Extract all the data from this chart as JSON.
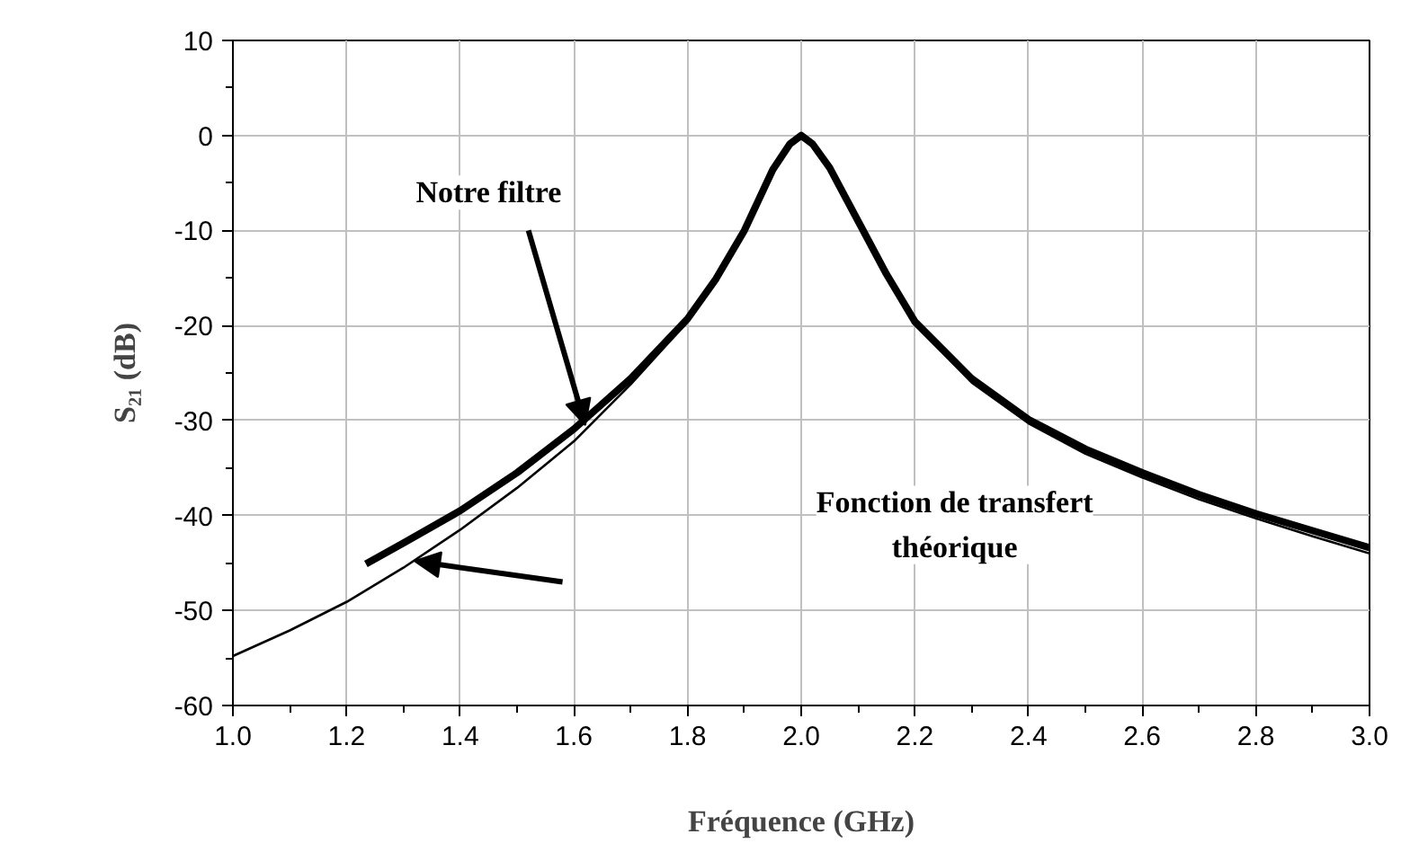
{
  "chart_data": {
    "type": "line",
    "xlabel": "Fréquence (GHz)",
    "ylabel": "S₂₁ (dB)",
    "xlim": [
      1.0,
      3.0
    ],
    "xticks": [
      {
        "value": 1.0,
        "label": "1.0"
      },
      1.2,
      1.4,
      1.6,
      1.8,
      {
        "value": 2.0,
        "label": "2.0"
      },
      2.2,
      2.4,
      2.6,
      2.8,
      {
        "value": 3.0,
        "label": "3.0"
      }
    ],
    "ylim": [
      -60,
      10
    ],
    "yticks": [
      -60,
      -50,
      -40,
      -30,
      -20,
      -10,
      0,
      10
    ],
    "grid": true,
    "marker": "none",
    "line_style": "solid",
    "series": [
      {
        "name": null,
        "color": "#000000",
        "x": [
          1.234,
          1.3,
          1.4,
          1.5,
          1.6,
          1.7,
          1.8,
          1.85,
          1.9,
          1.95,
          1.98,
          2.0,
          2.02,
          2.05,
          2.1,
          2.15,
          2.2,
          2.3,
          2.4,
          2.5,
          2.6,
          2.7,
          2.8,
          2.9,
          3.0
        ],
        "values": [
          -45.1,
          -42.9,
          -39.5,
          -35.5,
          -30.9,
          -25.6,
          -19.3,
          -15.1,
          -10,
          -3.6,
          -0.9,
          0,
          -0.9,
          -3.4,
          -9,
          -14.6,
          -19.6,
          -25.6,
          -29.9,
          -33,
          -35.5,
          -37.8,
          -39.8,
          -41.6,
          -43.4
        ]
      },
      {
        "name": null,
        "color": "#000000",
        "x": [
          1.0,
          1.1,
          1.2,
          1.3,
          1.4,
          1.5,
          1.6,
          1.7,
          1.8,
          1.85,
          1.9,
          1.95,
          1.98,
          2.0,
          2.02,
          2.05,
          2.1,
          2.15,
          2.2,
          2.3,
          2.4,
          2.5,
          2.6,
          2.7,
          2.8,
          2.9,
          3.0
        ],
        "values": [
          -54.8,
          -52.1,
          -49.1,
          -45.5,
          -41.5,
          -37.1,
          -32.2,
          -26.2,
          -19.6,
          -15.2,
          -10.3,
          -3.8,
          -1,
          0,
          -1,
          -3.6,
          -9.2,
          -14.8,
          -19.8,
          -26,
          -30.3,
          -33.5,
          -36,
          -38.3,
          -40.3,
          -42.2,
          -44
        ]
      }
    ],
    "annotations": [
      {
        "text": "Notre filtre",
        "x": 1.62,
        "y": -30.5
      },
      "Fonction de transfert\nthéorique"
    ]
  }
}
